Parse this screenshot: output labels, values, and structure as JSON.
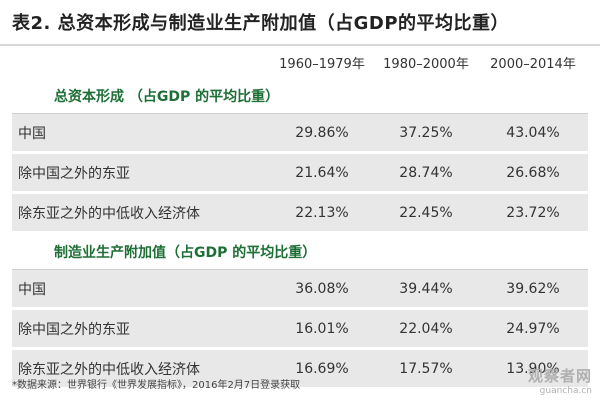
{
  "title": "表2.  总资本形成与制造业生产附加值（占GDP的平均比重）",
  "columns": [
    "",
    "1960–1979年",
    "1980–2000年",
    "2000–2014年"
  ],
  "sections": [
    {
      "title": "总资本形成  （占GDP 的平均比重）",
      "rows": [
        {
          "label": "中国",
          "values": [
            "29.86%",
            "37.25%",
            "43.04%"
          ]
        },
        {
          "label": "除中国之外的东亚",
          "values": [
            "21.64%",
            "28.74%",
            "26.68%"
          ]
        },
        {
          "label": "除东亚之外的中低收入经济体",
          "values": [
            "22.13%",
            "22.45%",
            "23.72%"
          ]
        }
      ]
    },
    {
      "title": "制造业生产附加值（占GDP 的平均比重）",
      "rows": [
        {
          "label": "中国",
          "values": [
            "36.08%",
            "39.44%",
            "39.62%"
          ]
        },
        {
          "label": "除中国之外的东亚",
          "values": [
            "16.01%",
            "22.04%",
            "24.97%"
          ]
        },
        {
          "label": "除东亚之外的中低收入经济体",
          "values": [
            "16.69%",
            "17.57%",
            "13.90%"
          ]
        }
      ]
    }
  ],
  "footnote": "*数据来源：世界银行《世界发展指标》，2016年2月7日登录获取",
  "watermark": {
    "main": "观察者网",
    "sub": "guancha.cn"
  }
}
